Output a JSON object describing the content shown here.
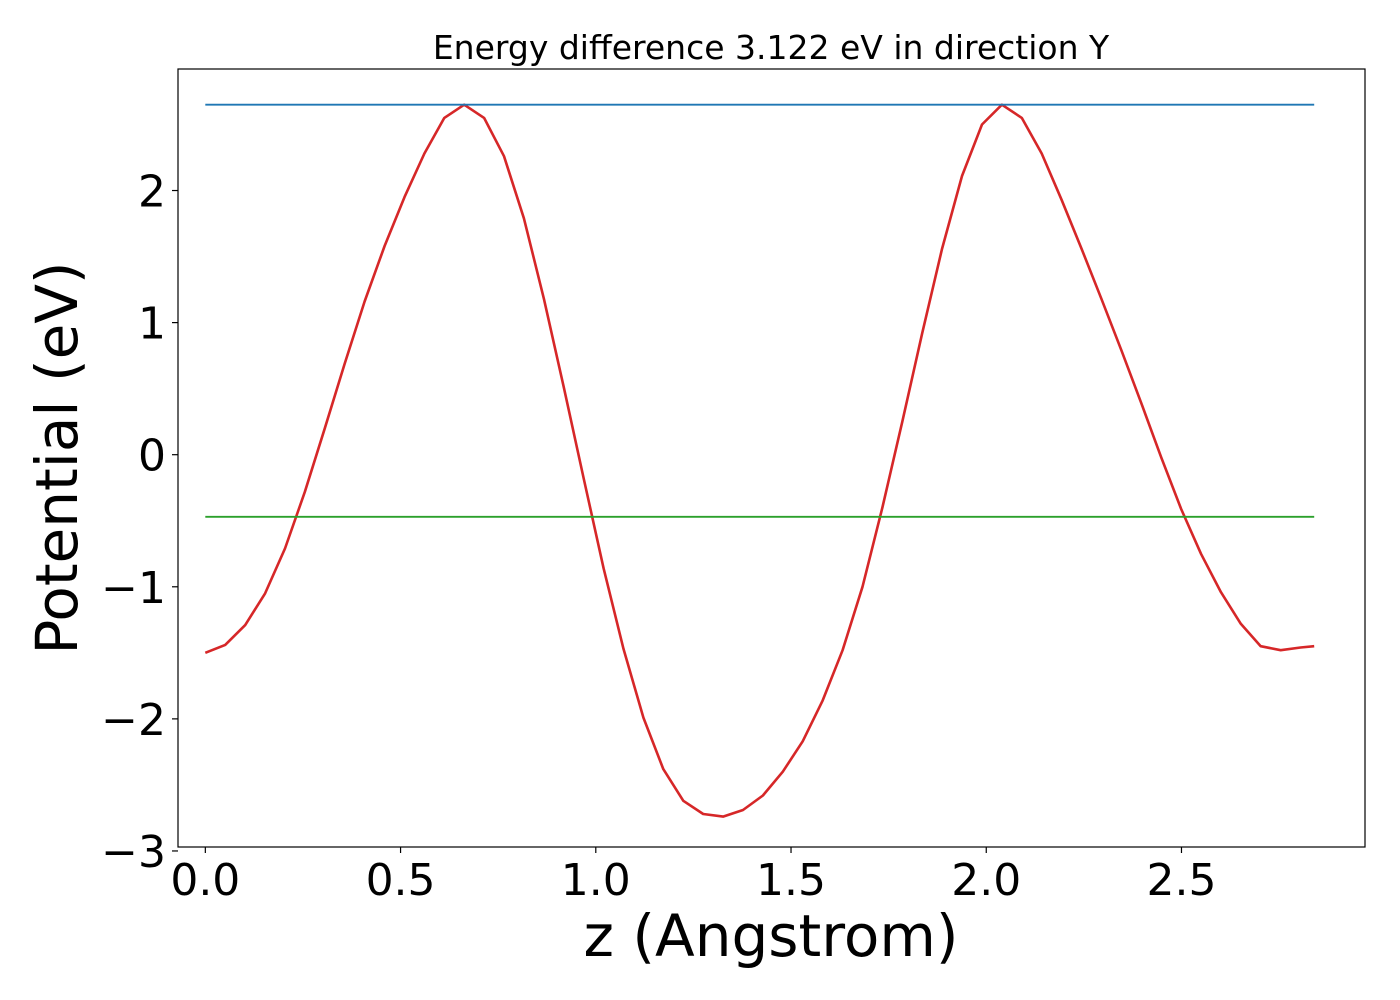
{
  "chart_data": {
    "type": "line",
    "title": "Energy difference 3.122 eV in direction Y",
    "xlabel": "z (Angstrom)",
    "ylabel": "Potential (eV)",
    "xlim": [
      -0.07,
      2.97
    ],
    "ylim": [
      -2.97,
      2.92
    ],
    "xticks": [
      0.0,
      0.5,
      1.0,
      1.5,
      2.0,
      2.5
    ],
    "xtick_labels": [
      "0.0",
      "0.5",
      "1.0",
      "1.5",
      "2.0",
      "2.5"
    ],
    "yticks": [
      -3,
      -2,
      -1,
      0,
      1,
      2
    ],
    "ytick_labels": [
      "−3",
      "−2",
      "−1",
      "0",
      "1",
      "2"
    ],
    "grid": false,
    "legend": "none",
    "series": [
      {
        "color": "#d62728",
        "x": [
          0.0,
          0.051,
          0.102,
          0.153,
          0.204,
          0.255,
          0.306,
          0.357,
          0.408,
          0.459,
          0.51,
          0.561,
          0.612,
          0.663,
          0.714,
          0.765,
          0.816,
          0.867,
          0.918,
          0.969,
          1.02,
          1.071,
          1.122,
          1.173,
          1.224,
          1.275,
          1.326,
          1.377,
          1.428,
          1.479,
          1.53,
          1.581,
          1.632,
          1.683,
          1.734,
          1.785,
          1.836,
          1.887,
          1.938,
          1.989,
          2.04,
          2.091,
          2.142,
          2.193,
          2.244,
          2.295,
          2.346,
          2.397,
          2.448,
          2.499,
          2.55,
          2.601,
          2.652,
          2.703,
          2.754,
          2.805,
          2.84
        ],
        "y": [
          -1.5,
          -1.44,
          -1.29,
          -1.05,
          -0.71,
          -0.28,
          0.2,
          0.69,
          1.16,
          1.58,
          1.95,
          2.28,
          2.55,
          2.65,
          2.55,
          2.26,
          1.79,
          1.18,
          0.51,
          -0.18,
          -0.86,
          -1.47,
          -1.99,
          -2.38,
          -2.62,
          -2.72,
          -2.74,
          -2.69,
          -2.58,
          -2.4,
          -2.17,
          -1.86,
          -1.48,
          -1.0,
          -0.4,
          0.25,
          0.92,
          1.56,
          2.11,
          2.5,
          2.65,
          2.55,
          2.28,
          1.93,
          1.56,
          1.18,
          0.79,
          0.39,
          -0.02,
          -0.41,
          -0.75,
          -1.04,
          -1.28,
          -1.45,
          -1.48,
          -1.46,
          -1.45
        ]
      },
      {
        "color": "#1f77b4",
        "x": [
          0.0,
          2.84
        ],
        "y": [
          2.65,
          2.65
        ]
      },
      {
        "color": "#2ca02c",
        "x": [
          0.0,
          2.84
        ],
        "y": [
          -0.47,
          -0.47
        ]
      }
    ]
  }
}
